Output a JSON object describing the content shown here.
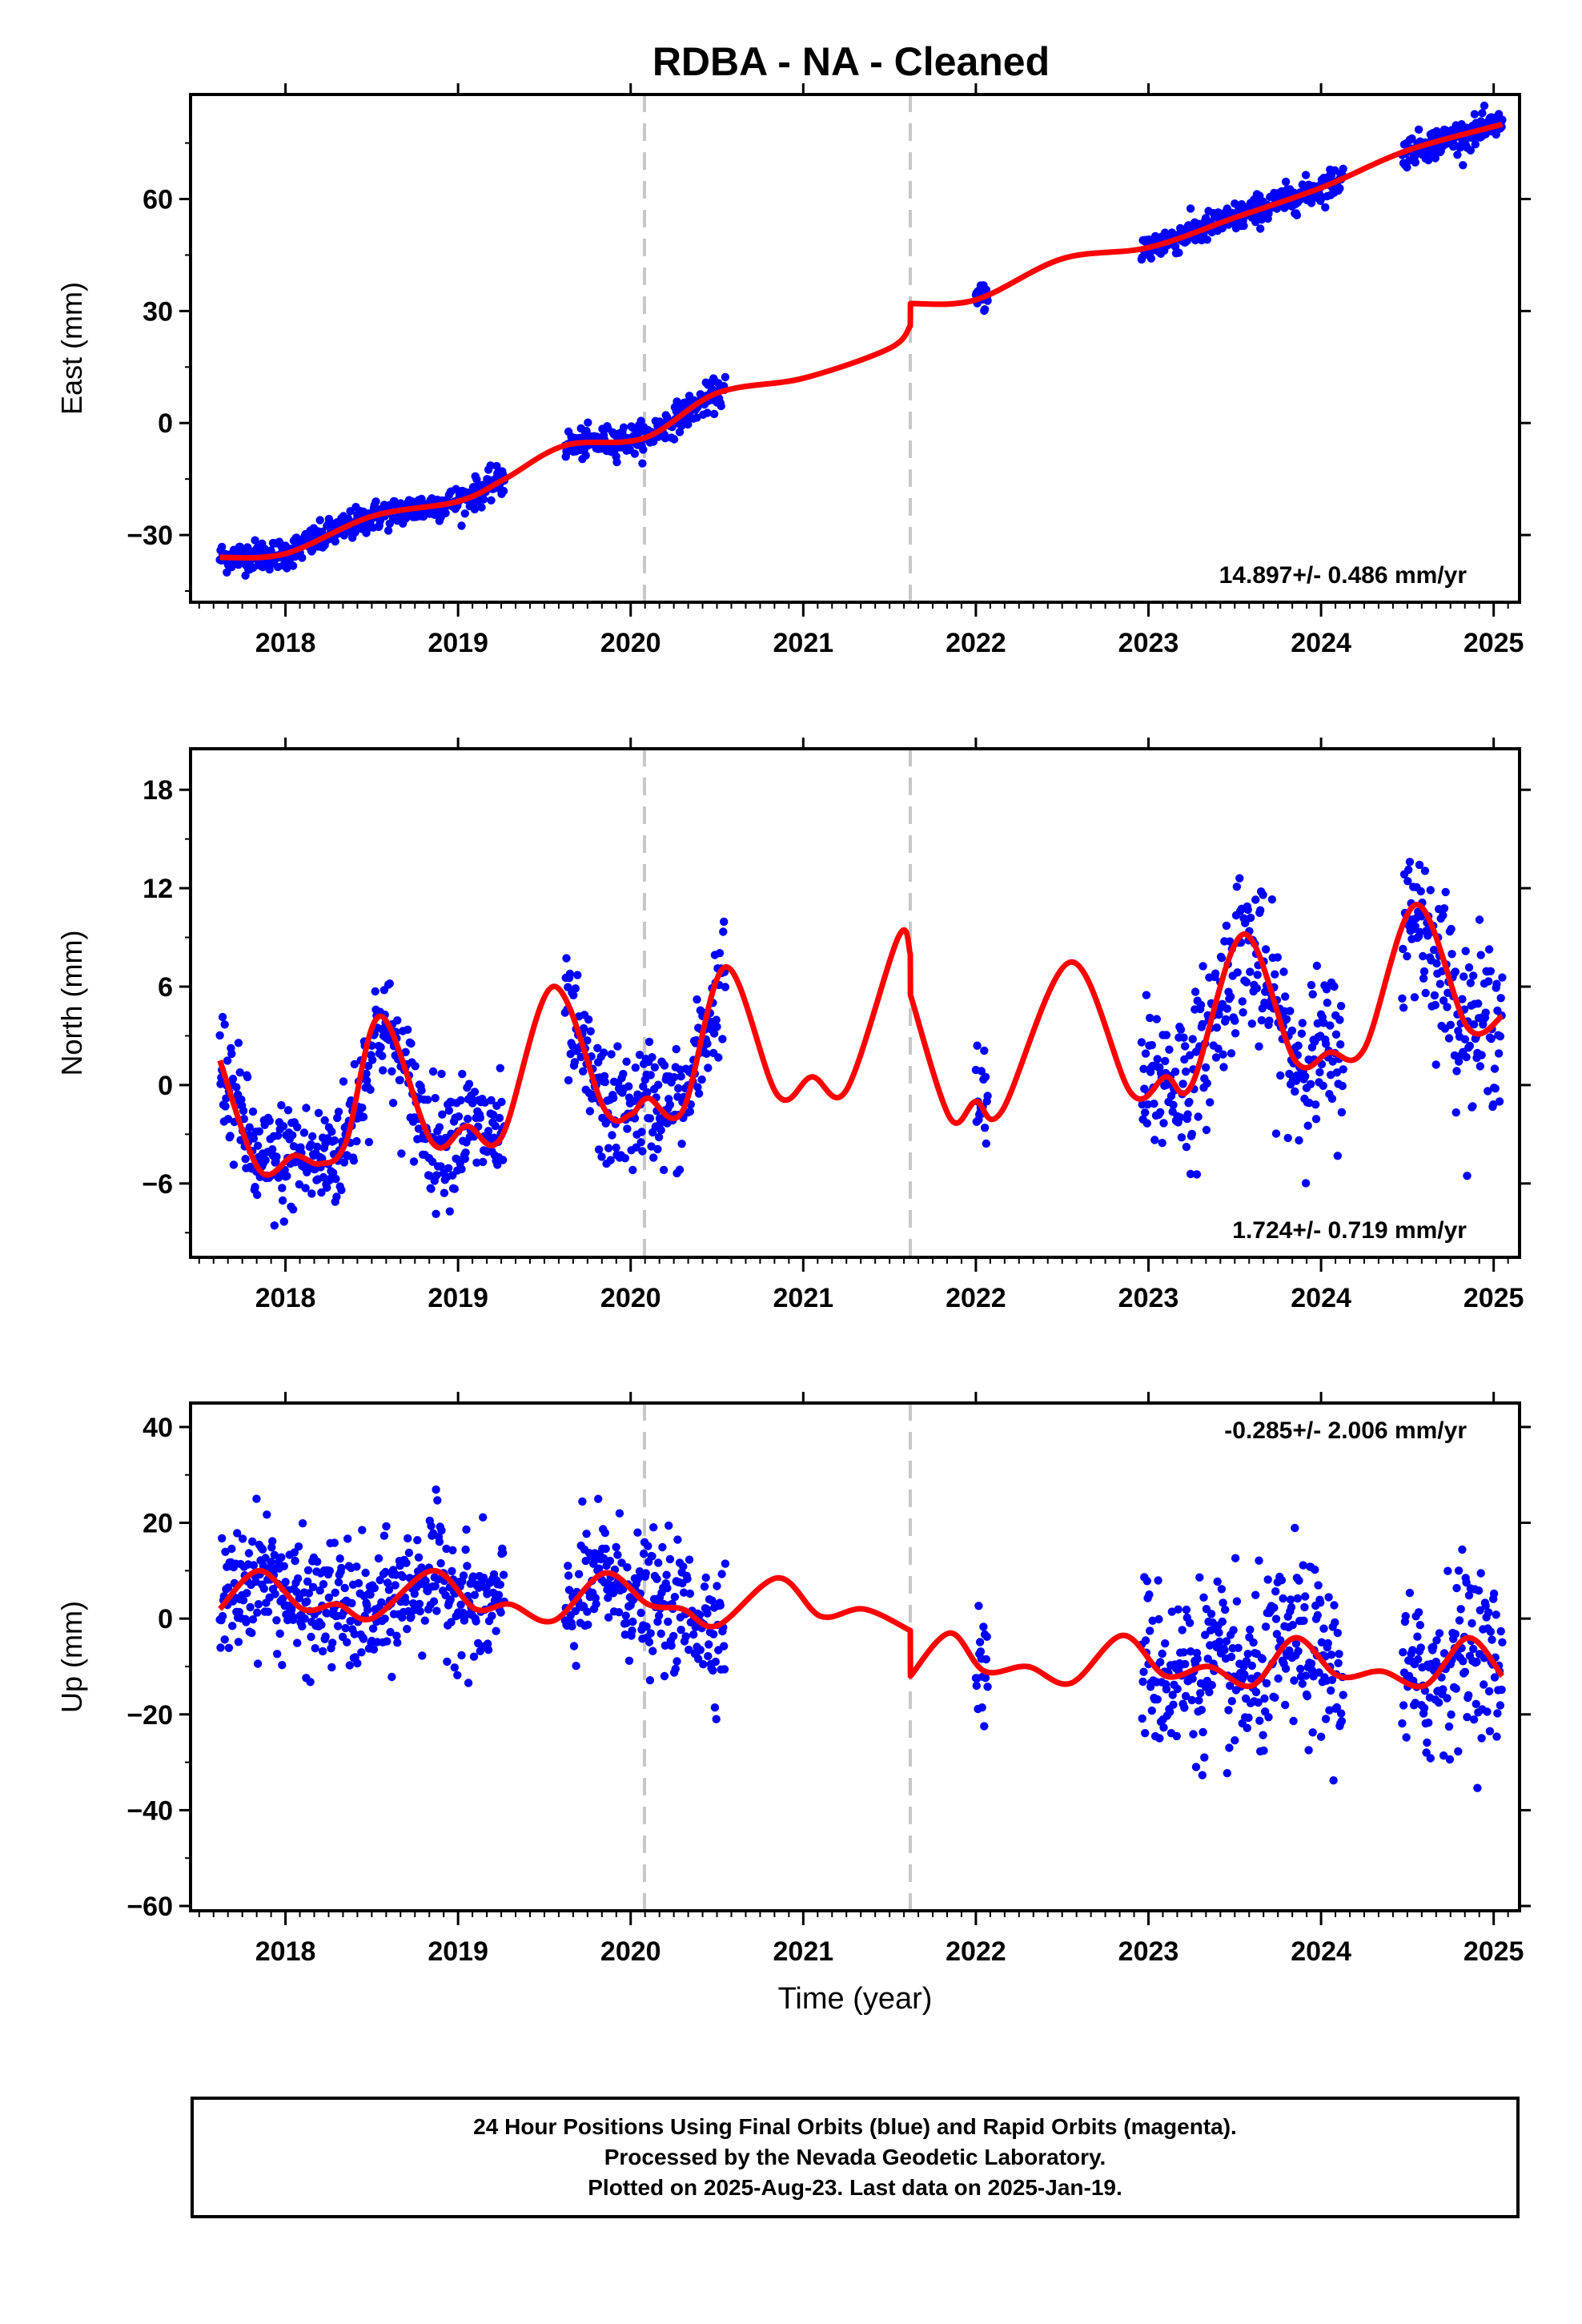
{
  "title": "RDBA  - NA - Cleaned",
  "xlabel": "Time (year)",
  "caption": {
    "line1": "24 Hour Positions Using Final Orbits (blue) and Rapid Orbits (magenta).",
    "line2": "Processed by the Nevada Geodetic Laboratory.",
    "line3": "Plotted on 2025-Aug-23. Last data on 2025-Jan-19."
  },
  "colors": {
    "points": "#0000ff",
    "model": "#ff0000",
    "breaks": "#c8c8c8",
    "frame": "#000000"
  },
  "chart_data": [
    {
      "type": "scatter",
      "component": "east",
      "ylabel": "East (mm)",
      "rate_label": "14.897+/- 0.486 mm/yr",
      "xlim": [
        2017.45,
        2025.15
      ],
      "ylim": [
        -48,
        88
      ],
      "yticks": [
        -30,
        0,
        30,
        60
      ],
      "xticks": [
        2018,
        2019,
        2020,
        2021,
        2022,
        2023,
        2024,
        2025
      ],
      "breaks": [
        2020.08,
        2021.62
      ],
      "data_segments": [
        [
          2017.62,
          2019.27
        ],
        [
          2019.62,
          2020.55
        ],
        [
          2022.0,
          2022.07
        ],
        [
          2022.96,
          2024.13
        ],
        [
          2024.47,
          2025.05
        ]
      ],
      "model_points": [
        [
          2017.62,
          -36
        ],
        [
          2018.0,
          -35
        ],
        [
          2018.5,
          -25
        ],
        [
          2019.0,
          -21
        ],
        [
          2019.27,
          -15
        ],
        [
          2019.62,
          -6
        ],
        [
          2020.08,
          -4
        ],
        [
          2020.5,
          8
        ],
        [
          2021.0,
          12
        ],
        [
          2021.5,
          20
        ],
        [
          2021.62,
          26
        ],
        [
          2021.621,
          32
        ],
        [
          2022.0,
          33
        ],
        [
          2022.5,
          44
        ],
        [
          2023.0,
          47
        ],
        [
          2023.5,
          55
        ],
        [
          2024.0,
          63
        ],
        [
          2024.5,
          73
        ],
        [
          2025.05,
          80
        ]
      ]
    },
    {
      "type": "scatter",
      "component": "north",
      "ylabel": "North (mm)",
      "rate_label": "1.724+/- 0.719 mm/yr",
      "xlim": [
        2017.45,
        2025.15
      ],
      "ylim": [
        -10.5,
        20.5
      ],
      "yticks": [
        -6,
        0,
        6,
        12,
        18
      ],
      "xticks": [
        2018,
        2019,
        2020,
        2021,
        2022,
        2023,
        2024,
        2025
      ],
      "breaks": [
        2020.08,
        2021.62
      ],
      "data_segments": [
        [
          2017.62,
          2019.27
        ],
        [
          2019.62,
          2020.55
        ],
        [
          2022.0,
          2022.07
        ],
        [
          2022.96,
          2024.13
        ],
        [
          2024.47,
          2025.05
        ]
      ],
      "model_points": [
        [
          2017.62,
          1.5
        ],
        [
          2017.85,
          -5.2
        ],
        [
          2018.05,
          -4.3
        ],
        [
          2018.2,
          -4.8
        ],
        [
          2018.35,
          -3.5
        ],
        [
          2018.55,
          4.2
        ],
        [
          2018.85,
          -3.5
        ],
        [
          2019.05,
          -2.5
        ],
        [
          2019.25,
          -3.2
        ],
        [
          2019.55,
          6.0
        ],
        [
          2019.85,
          -1.5
        ],
        [
          2020.0,
          -1.8
        ],
        [
          2020.1,
          -0.8
        ],
        [
          2020.3,
          -1.6
        ],
        [
          2020.55,
          7.2
        ],
        [
          2020.85,
          -0.6
        ],
        [
          2021.05,
          0.5
        ],
        [
          2021.25,
          -0.3
        ],
        [
          2021.55,
          9.0
        ],
        [
          2021.62,
          8.0
        ],
        [
          2021.621,
          5.5
        ],
        [
          2021.85,
          -2.0
        ],
        [
          2022.0,
          -1.0
        ],
        [
          2022.15,
          -1.6
        ],
        [
          2022.55,
          7.5
        ],
        [
          2022.9,
          -0.5
        ],
        [
          2023.1,
          0.5
        ],
        [
          2023.25,
          0.0
        ],
        [
          2023.55,
          9.2
        ],
        [
          2023.85,
          1.5
        ],
        [
          2024.05,
          2.0
        ],
        [
          2024.25,
          2.2
        ],
        [
          2024.55,
          11.0
        ],
        [
          2024.85,
          3.5
        ],
        [
          2025.05,
          4.2
        ]
      ]
    },
    {
      "type": "scatter",
      "component": "up",
      "ylabel": "Up (mm)",
      "rate_label": "-0.285+/- 2.006 mm/yr",
      "xlim": [
        2017.45,
        2025.15
      ],
      "ylim": [
        -61,
        45
      ],
      "yticks": [
        -60,
        -40,
        -20,
        0,
        20,
        40
      ],
      "xticks": [
        2018,
        2019,
        2020,
        2021,
        2022,
        2023,
        2024,
        2025
      ],
      "breaks": [
        2020.08,
        2021.62
      ],
      "data_segments": [
        [
          2017.62,
          2019.27
        ],
        [
          2019.62,
          2020.55
        ],
        [
          2022.0,
          2022.07
        ],
        [
          2022.96,
          2024.13
        ],
        [
          2024.47,
          2025.05
        ]
      ],
      "model_points": [
        [
          2017.62,
          2
        ],
        [
          2017.85,
          10
        ],
        [
          2018.1,
          2
        ],
        [
          2018.3,
          3
        ],
        [
          2018.5,
          0
        ],
        [
          2018.85,
          10
        ],
        [
          2019.1,
          2
        ],
        [
          2019.3,
          3
        ],
        [
          2019.55,
          -0.5
        ],
        [
          2019.85,
          9.5
        ],
        [
          2020.1,
          3
        ],
        [
          2020.3,
          2
        ],
        [
          2020.5,
          -1.5
        ],
        [
          2020.85,
          8.5
        ],
        [
          2021.1,
          0.5
        ],
        [
          2021.35,
          2
        ],
        [
          2021.62,
          -2.5
        ],
        [
          2021.621,
          -12
        ],
        [
          2021.85,
          -3
        ],
        [
          2022.05,
          -11
        ],
        [
          2022.3,
          -10
        ],
        [
          2022.55,
          -13.5
        ],
        [
          2022.85,
          -3.5
        ],
        [
          2023.1,
          -12
        ],
        [
          2023.35,
          -10
        ],
        [
          2023.6,
          -14
        ],
        [
          2023.85,
          -4
        ],
        [
          2024.1,
          -12
        ],
        [
          2024.35,
          -11
        ],
        [
          2024.6,
          -14
        ],
        [
          2024.85,
          -4
        ],
        [
          2025.05,
          -12
        ]
      ]
    }
  ]
}
